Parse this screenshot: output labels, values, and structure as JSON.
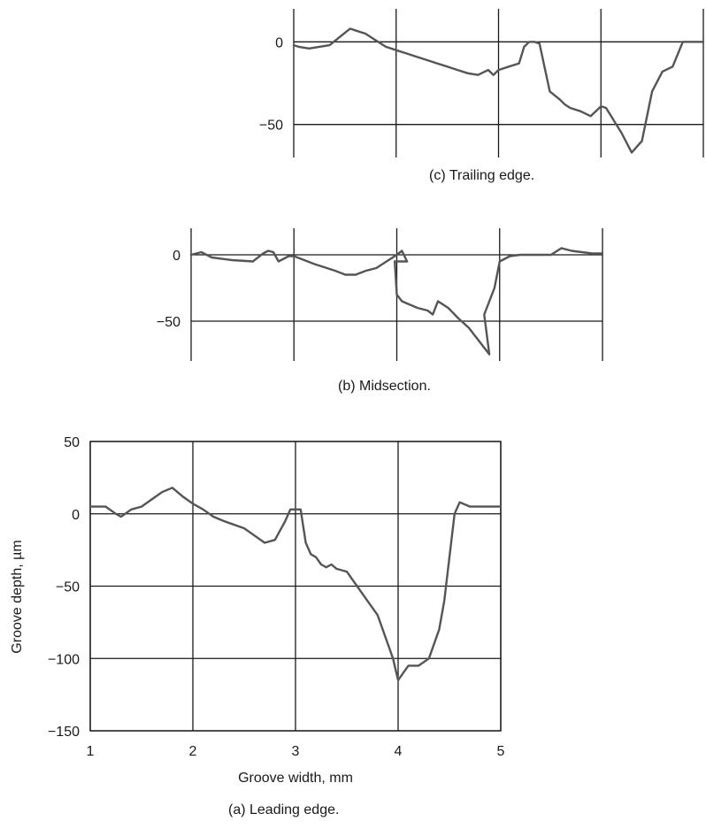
{
  "colors": {
    "line": "#555555",
    "grid": "#1a1a1a",
    "background": "#ffffff"
  },
  "chart_data": [
    {
      "panel": "c",
      "type": "line",
      "caption": "(c) Trailing edge.",
      "xlabel": "",
      "ylabel": "",
      "xlim": [
        1,
        5
      ],
      "ylim": [
        -70,
        20
      ],
      "yticks": [
        0,
        -50
      ],
      "ytick_labels": [
        "0",
        "−50"
      ],
      "xgrid": [
        1,
        2,
        3,
        4,
        5
      ],
      "grid": true,
      "series": [
        {
          "x": [
            1.0,
            1.05,
            1.15,
            1.25,
            1.35,
            1.45,
            1.55,
            1.6,
            1.7,
            1.8,
            1.9,
            2.0,
            2.1,
            2.2,
            2.3,
            2.4,
            2.5,
            2.6,
            2.7,
            2.8,
            2.9,
            2.95,
            3.0,
            3.1,
            3.2,
            3.25,
            3.3,
            3.35,
            3.4,
            3.5,
            3.6,
            3.65,
            3.7,
            3.8,
            3.9,
            4.0,
            4.05,
            4.1,
            4.15,
            4.2,
            4.25,
            4.3,
            4.4,
            4.5,
            4.6,
            4.7,
            4.8,
            4.9,
            5.0
          ],
          "y": [
            -2,
            -3,
            -4,
            -3,
            -2,
            3,
            8,
            7,
            5,
            1,
            -3,
            -5,
            -7,
            -9,
            -11,
            -13,
            -15,
            -17,
            -19,
            -20,
            -17,
            -20,
            -17,
            -15,
            -13,
            -3,
            0,
            0,
            -1,
            -30,
            -35,
            -38,
            -40,
            -42,
            -45,
            -39,
            -40,
            -45,
            -50,
            -55,
            -61,
            -67,
            -60,
            -30,
            -18,
            -15,
            0,
            0,
            0
          ]
        }
      ]
    },
    {
      "panel": "b",
      "type": "line",
      "caption": "(b) Midsection.",
      "xlabel": "",
      "ylabel": "",
      "xlim": [
        1,
        5
      ],
      "ylim": [
        -80,
        20
      ],
      "yticks": [
        0,
        -50
      ],
      "ytick_labels": [
        "0",
        "−50"
      ],
      "xgrid": [
        1,
        2,
        3,
        4,
        5
      ],
      "grid": true,
      "series": [
        {
          "x": [
            1.0,
            1.1,
            1.2,
            1.4,
            1.6,
            1.7,
            1.75,
            1.8,
            1.85,
            1.95,
            2.0,
            2.2,
            2.4,
            2.5,
            2.6,
            2.7,
            2.8,
            2.9,
            3.0,
            3.05,
            3.1,
            2.98,
            3.0,
            3.05,
            3.2,
            3.3,
            3.35,
            3.4,
            3.5,
            3.6,
            3.7,
            3.8,
            3.9,
            3.85,
            3.9,
            3.95,
            4.0,
            4.1,
            4.2,
            4.3,
            4.4,
            4.5,
            4.6,
            4.7,
            4.8,
            4.9,
            5.0
          ],
          "y": [
            0,
            2,
            -2,
            -4,
            -5,
            1,
            3,
            2,
            -5,
            -1,
            -1,
            -7,
            -12,
            -15,
            -15,
            -12,
            -10,
            -5,
            0,
            3,
            -5,
            -5,
            -30,
            -35,
            -40,
            -42,
            -45,
            -35,
            -40,
            -48,
            -55,
            -65,
            -75,
            -45,
            -35,
            -25,
            -5,
            -1,
            0,
            0,
            0,
            0,
            5,
            3,
            2,
            1,
            1
          ]
        }
      ]
    },
    {
      "panel": "a",
      "type": "line",
      "caption": "(a) Leading edge.",
      "xlabel": "Groove width, mm",
      "ylabel": "Groove depth, µm",
      "xlim": [
        1,
        5
      ],
      "ylim": [
        -150,
        50
      ],
      "xticks": [
        1,
        2,
        3,
        4,
        5
      ],
      "xtick_labels": [
        "1",
        "2",
        "3",
        "4",
        "5"
      ],
      "yticks": [
        50,
        0,
        -50,
        -100,
        -150
      ],
      "ytick_labels": [
        "50",
        "0",
        "−50",
        "−100",
        "−150"
      ],
      "grid": true,
      "series": [
        {
          "x": [
            1.0,
            1.15,
            1.25,
            1.3,
            1.4,
            1.5,
            1.6,
            1.7,
            1.8,
            1.9,
            2.0,
            2.1,
            2.2,
            2.3,
            2.5,
            2.6,
            2.7,
            2.8,
            2.9,
            2.95,
            3.05,
            3.1,
            3.15,
            3.2,
            3.25,
            3.3,
            3.35,
            3.4,
            3.5,
            3.55,
            3.6,
            3.65,
            3.7,
            3.8,
            3.85,
            3.9,
            3.95,
            4.0,
            4.05,
            4.1,
            4.2,
            4.3,
            4.4,
            4.45,
            4.5,
            4.55,
            4.6,
            4.7,
            4.8,
            5.0
          ],
          "y": [
            5,
            5,
            0,
            -2,
            3,
            5,
            10,
            15,
            18,
            12,
            7,
            3,
            -2,
            -5,
            -10,
            -15,
            -20,
            -18,
            -5,
            3,
            3,
            -20,
            -28,
            -30,
            -35,
            -37,
            -35,
            -38,
            -40,
            -45,
            -50,
            -55,
            -60,
            -70,
            -80,
            -90,
            -100,
            -115,
            -110,
            -105,
            -105,
            -100,
            -80,
            -60,
            -30,
            0,
            8,
            5,
            5,
            5
          ]
        }
      ]
    }
  ]
}
